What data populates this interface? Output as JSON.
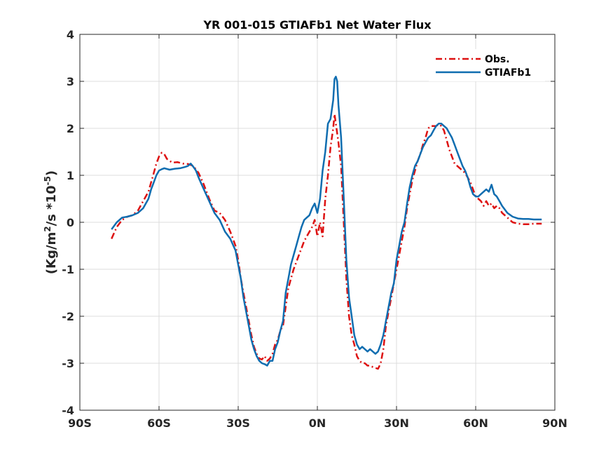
{
  "chart_data": {
    "type": "line",
    "title": "YR 001-015 GTIAFb1  Net Water Flux",
    "ylabel_main": "(Kg/m",
    "ylabel_sup1": "2",
    "ylabel_mid": "/s *10",
    "ylabel_sup2": "-5",
    "ylabel_end": ")",
    "xlim": [
      -90,
      90
    ],
    "ylim": [
      -4,
      4
    ],
    "grid": true,
    "legend_position": "top-right",
    "x_ticks": [
      {
        "value": -90,
        "label": "90S"
      },
      {
        "value": -60,
        "label": "60S"
      },
      {
        "value": -30,
        "label": "30S"
      },
      {
        "value": 0,
        "label": "0N"
      },
      {
        "value": 30,
        "label": "30N"
      },
      {
        "value": 60,
        "label": "60N"
      },
      {
        "value": 90,
        "label": "90N"
      }
    ],
    "y_ticks": [
      {
        "value": 4,
        "label": "4"
      },
      {
        "value": 3,
        "label": "3"
      },
      {
        "value": 2,
        "label": "2"
      },
      {
        "value": 1,
        "label": "1"
      },
      {
        "value": 0,
        "label": "0"
      },
      {
        "value": -1,
        "label": "-1"
      },
      {
        "value": -2,
        "label": "-2"
      },
      {
        "value": -3,
        "label": "-3"
      },
      {
        "value": -4,
        "label": "-4"
      }
    ],
    "series": [
      {
        "name": "Obs.",
        "color": "#dd1111",
        "style": "dashdot",
        "points": [
          [
            -78,
            -0.35
          ],
          [
            -76,
            -0.1
          ],
          [
            -74,
            0.05
          ],
          [
            -72,
            0.12
          ],
          [
            -70,
            0.15
          ],
          [
            -68,
            0.25
          ],
          [
            -66,
            0.45
          ],
          [
            -64,
            0.65
          ],
          [
            -62,
            1.05
          ],
          [
            -61,
            1.25
          ],
          [
            -60,
            1.4
          ],
          [
            -59,
            1.48
          ],
          [
            -58,
            1.45
          ],
          [
            -57,
            1.35
          ],
          [
            -55,
            1.27
          ],
          [
            -53,
            1.28
          ],
          [
            -51,
            1.25
          ],
          [
            -49,
            1.24
          ],
          [
            -47,
            1.2
          ],
          [
            -45,
            1.05
          ],
          [
            -43,
            0.8
          ],
          [
            -41,
            0.5
          ],
          [
            -39,
            0.25
          ],
          [
            -37,
            0.2
          ],
          [
            -35,
            0.05
          ],
          [
            -33,
            -0.2
          ],
          [
            -31,
            -0.5
          ],
          [
            -30,
            -0.8
          ],
          [
            -29,
            -1.2
          ],
          [
            -28,
            -1.5
          ],
          [
            -27,
            -1.8
          ],
          [
            -26,
            -2.1
          ],
          [
            -25,
            -2.4
          ],
          [
            -24,
            -2.65
          ],
          [
            -23,
            -2.8
          ],
          [
            -22,
            -2.9
          ],
          [
            -21,
            -2.92
          ],
          [
            -20,
            -2.85
          ],
          [
            -19,
            -2.95
          ],
          [
            -18,
            -2.9
          ],
          [
            -17,
            -2.8
          ],
          [
            -16,
            -2.6
          ],
          [
            -15,
            -2.5
          ],
          [
            -14,
            -2.3
          ],
          [
            -13,
            -2.2
          ],
          [
            -12,
            -1.8
          ],
          [
            -11,
            -1.4
          ],
          [
            -10,
            -1.2
          ],
          [
            -9,
            -1.0
          ],
          [
            -8,
            -0.85
          ],
          [
            -7,
            -0.7
          ],
          [
            -6,
            -0.55
          ],
          [
            -5,
            -0.4
          ],
          [
            -4,
            -0.3
          ],
          [
            -3,
            -0.2
          ],
          [
            -2,
            -0.1
          ],
          [
            -1,
            0.05
          ],
          [
            0,
            -0.3
          ],
          [
            1,
            0.0
          ],
          [
            2,
            -0.3
          ],
          [
            3,
            0.5
          ],
          [
            4,
            1.0
          ],
          [
            5,
            1.6
          ],
          [
            6,
            2.0
          ],
          [
            6.5,
            2.3
          ],
          [
            7,
            2.1
          ],
          [
            8,
            1.7
          ],
          [
            9,
            1.2
          ],
          [
            10,
            0.0
          ],
          [
            11,
            -1.2
          ],
          [
            12,
            -2.0
          ],
          [
            13,
            -2.4
          ],
          [
            14,
            -2.6
          ],
          [
            15,
            -2.85
          ],
          [
            16,
            -2.95
          ],
          [
            17,
            -3.0
          ],
          [
            18,
            -3.0
          ],
          [
            19,
            -3.05
          ],
          [
            20,
            -3.05
          ],
          [
            21,
            -3.08
          ],
          [
            22,
            -3.1
          ],
          [
            23,
            -3.12
          ],
          [
            24,
            -3.0
          ],
          [
            25,
            -2.7
          ],
          [
            26,
            -2.2
          ],
          [
            27,
            -1.9
          ],
          [
            28,
            -1.6
          ],
          [
            29,
            -1.3
          ],
          [
            30,
            -1.0
          ],
          [
            31,
            -0.7
          ],
          [
            32,
            -0.4
          ],
          [
            33,
            -0.1
          ],
          [
            34,
            0.3
          ],
          [
            35,
            0.6
          ],
          [
            36,
            0.9
          ],
          [
            37,
            1.1
          ],
          [
            38,
            1.3
          ],
          [
            39,
            1.45
          ],
          [
            40,
            1.65
          ],
          [
            41,
            1.8
          ],
          [
            42,
            2.0
          ],
          [
            43,
            2.05
          ],
          [
            44,
            2.05
          ],
          [
            45,
            2.05
          ],
          [
            46,
            2.08
          ],
          [
            47,
            2.05
          ],
          [
            48,
            1.95
          ],
          [
            49,
            1.75
          ],
          [
            50,
            1.55
          ],
          [
            51,
            1.4
          ],
          [
            52,
            1.25
          ],
          [
            53,
            1.2
          ],
          [
            54,
            1.15
          ],
          [
            55,
            1.1
          ],
          [
            56,
            1.05
          ],
          [
            57,
            0.95
          ],
          [
            58,
            0.85
          ],
          [
            59,
            0.7
          ],
          [
            60,
            0.55
          ],
          [
            61,
            0.5
          ],
          [
            62,
            0.45
          ],
          [
            63,
            0.35
          ],
          [
            64,
            0.45
          ],
          [
            65,
            0.35
          ],
          [
            66,
            0.4
          ],
          [
            67,
            0.3
          ],
          [
            68,
            0.35
          ],
          [
            69,
            0.3
          ],
          [
            70,
            0.2
          ],
          [
            72,
            0.1
          ],
          [
            74,
            0.0
          ],
          [
            76,
            -0.03
          ],
          [
            78,
            -0.04
          ],
          [
            80,
            -0.04
          ],
          [
            82,
            -0.03
          ],
          [
            84,
            -0.03
          ],
          [
            85,
            -0.03
          ]
        ]
      },
      {
        "name": "GTIAFb1",
        "color": "#0f6db0",
        "style": "solid",
        "points": [
          [
            -78,
            -0.15
          ],
          [
            -76,
            0.0
          ],
          [
            -74,
            0.1
          ],
          [
            -72,
            0.12
          ],
          [
            -70,
            0.15
          ],
          [
            -68,
            0.2
          ],
          [
            -66,
            0.3
          ],
          [
            -64,
            0.5
          ],
          [
            -63,
            0.7
          ],
          [
            -62,
            0.85
          ],
          [
            -61,
            1.0
          ],
          [
            -60,
            1.1
          ],
          [
            -59,
            1.13
          ],
          [
            -58,
            1.15
          ],
          [
            -56,
            1.12
          ],
          [
            -54,
            1.14
          ],
          [
            -52,
            1.15
          ],
          [
            -50,
            1.18
          ],
          [
            -49,
            1.2
          ],
          [
            -48,
            1.25
          ],
          [
            -47,
            1.18
          ],
          [
            -46,
            1.1
          ],
          [
            -45,
            0.95
          ],
          [
            -43,
            0.7
          ],
          [
            -41,
            0.45
          ],
          [
            -39,
            0.2
          ],
          [
            -37,
            0.05
          ],
          [
            -35,
            -0.2
          ],
          [
            -33,
            -0.35
          ],
          [
            -31,
            -0.6
          ],
          [
            -30,
            -0.9
          ],
          [
            -29,
            -1.2
          ],
          [
            -28,
            -1.6
          ],
          [
            -27,
            -1.9
          ],
          [
            -26,
            -2.2
          ],
          [
            -25,
            -2.5
          ],
          [
            -24,
            -2.7
          ],
          [
            -23,
            -2.85
          ],
          [
            -22,
            -2.95
          ],
          [
            -21,
            -3.0
          ],
          [
            -20,
            -3.02
          ],
          [
            -19,
            -3.05
          ],
          [
            -18,
            -2.95
          ],
          [
            -17,
            -2.95
          ],
          [
            -16,
            -2.7
          ],
          [
            -15,
            -2.55
          ],
          [
            -14,
            -2.3
          ],
          [
            -13,
            -2.1
          ],
          [
            -12,
            -1.5
          ],
          [
            -11,
            -1.2
          ],
          [
            -10,
            -0.9
          ],
          [
            -9,
            -0.7
          ],
          [
            -8,
            -0.5
          ],
          [
            -7,
            -0.3
          ],
          [
            -6,
            -0.1
          ],
          [
            -5,
            0.05
          ],
          [
            -4,
            0.1
          ],
          [
            -3,
            0.15
          ],
          [
            -2,
            0.3
          ],
          [
            -1,
            0.4
          ],
          [
            0,
            0.2
          ],
          [
            1,
            0.5
          ],
          [
            2,
            1.1
          ],
          [
            3,
            1.5
          ],
          [
            4,
            2.1
          ],
          [
            5,
            2.2
          ],
          [
            6,
            2.6
          ],
          [
            6.5,
            3.05
          ],
          [
            7,
            3.1
          ],
          [
            7.5,
            3.0
          ],
          [
            8,
            2.5
          ],
          [
            9,
            1.8
          ],
          [
            10,
            0.5
          ],
          [
            11,
            -0.8
          ],
          [
            12,
            -1.6
          ],
          [
            13,
            -2.0
          ],
          [
            14,
            -2.4
          ],
          [
            15,
            -2.6
          ],
          [
            16,
            -2.7
          ],
          [
            17,
            -2.65
          ],
          [
            18,
            -2.7
          ],
          [
            19,
            -2.75
          ],
          [
            20,
            -2.7
          ],
          [
            21,
            -2.75
          ],
          [
            22,
            -2.8
          ],
          [
            23,
            -2.75
          ],
          [
            24,
            -2.6
          ],
          [
            25,
            -2.4
          ],
          [
            26,
            -2.1
          ],
          [
            27,
            -1.8
          ],
          [
            28,
            -1.5
          ],
          [
            29,
            -1.3
          ],
          [
            30,
            -0.8
          ],
          [
            31,
            -0.5
          ],
          [
            32,
            -0.2
          ],
          [
            33,
            0.0
          ],
          [
            34,
            0.4
          ],
          [
            35,
            0.75
          ],
          [
            36,
            1.0
          ],
          [
            37,
            1.2
          ],
          [
            38,
            1.3
          ],
          [
            39,
            1.45
          ],
          [
            40,
            1.6
          ],
          [
            41,
            1.7
          ],
          [
            42,
            1.8
          ],
          [
            43,
            1.85
          ],
          [
            44,
            1.95
          ],
          [
            45,
            2.05
          ],
          [
            46,
            2.1
          ],
          [
            47,
            2.1
          ],
          [
            48,
            2.05
          ],
          [
            49,
            2.0
          ],
          [
            50,
            1.9
          ],
          [
            51,
            1.8
          ],
          [
            52,
            1.65
          ],
          [
            53,
            1.5
          ],
          [
            54,
            1.35
          ],
          [
            55,
            1.2
          ],
          [
            56,
            1.1
          ],
          [
            57,
            0.95
          ],
          [
            58,
            0.75
          ],
          [
            59,
            0.6
          ],
          [
            60,
            0.55
          ],
          [
            61,
            0.55
          ],
          [
            62,
            0.6
          ],
          [
            63,
            0.65
          ],
          [
            64,
            0.7
          ],
          [
            65,
            0.65
          ],
          [
            66,
            0.8
          ],
          [
            67,
            0.6
          ],
          [
            68,
            0.55
          ],
          [
            69,
            0.45
          ],
          [
            70,
            0.35
          ],
          [
            72,
            0.2
          ],
          [
            74,
            0.12
          ],
          [
            76,
            0.08
          ],
          [
            78,
            0.07
          ],
          [
            80,
            0.07
          ],
          [
            82,
            0.06
          ],
          [
            84,
            0.06
          ],
          [
            85,
            0.06
          ]
        ]
      }
    ]
  }
}
